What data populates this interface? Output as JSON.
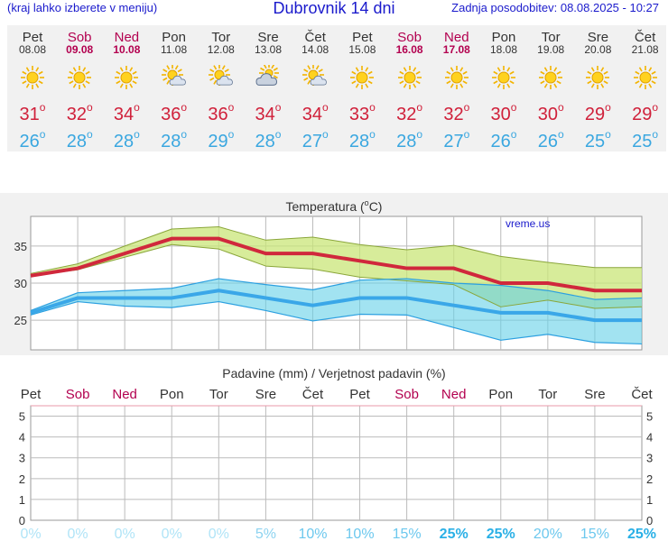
{
  "header": {
    "left_note": "(kraj lahko izberete v meniju)",
    "title": "Dubrovnik 14 dni",
    "updated": "Zadnja posodobitev: 08.08.2025 - 10:27"
  },
  "days": [
    {
      "name": "Pet",
      "date": "08.08",
      "weekend": false,
      "icon": "sun-icon",
      "max": "31",
      "min": "26",
      "precip_prob": "0%"
    },
    {
      "name": "Sob",
      "date": "09.08",
      "weekend": true,
      "icon": "sun-icon",
      "max": "32",
      "min": "28",
      "precip_prob": "0%"
    },
    {
      "name": "Ned",
      "date": "10.08",
      "weekend": true,
      "icon": "sun-icon",
      "max": "34",
      "min": "28",
      "precip_prob": "0%"
    },
    {
      "name": "Pon",
      "date": "11.08",
      "weekend": false,
      "icon": "partly-cloudy-icon",
      "max": "36",
      "min": "28",
      "precip_prob": "0%"
    },
    {
      "name": "Tor",
      "date": "12.08",
      "weekend": false,
      "icon": "partly-cloudy-icon",
      "max": "36",
      "min": "29",
      "precip_prob": "0%"
    },
    {
      "name": "Sre",
      "date": "13.08",
      "weekend": false,
      "icon": "cloudy-icon",
      "max": "34",
      "min": "28",
      "precip_prob": "5%"
    },
    {
      "name": "Čet",
      "date": "14.08",
      "weekend": false,
      "icon": "partly-cloudy-icon",
      "max": "34",
      "min": "27",
      "precip_prob": "10%"
    },
    {
      "name": "Pet",
      "date": "15.08",
      "weekend": false,
      "icon": "sun-icon",
      "max": "33",
      "min": "28",
      "precip_prob": "10%"
    },
    {
      "name": "Sob",
      "date": "16.08",
      "weekend": true,
      "icon": "sun-icon",
      "max": "32",
      "min": "28",
      "precip_prob": "15%"
    },
    {
      "name": "Ned",
      "date": "17.08",
      "weekend": true,
      "icon": "sun-icon",
      "max": "32",
      "min": "27",
      "precip_prob": "25%"
    },
    {
      "name": "Pon",
      "date": "18.08",
      "weekend": false,
      "icon": "sun-icon",
      "max": "30",
      "min": "26",
      "precip_prob": "25%"
    },
    {
      "name": "Tor",
      "date": "19.08",
      "weekend": false,
      "icon": "sun-icon",
      "max": "30",
      "min": "26",
      "precip_prob": "20%"
    },
    {
      "name": "Sre",
      "date": "20.08",
      "weekend": false,
      "icon": "sun-icon",
      "max": "29",
      "min": "25",
      "precip_prob": "15%"
    },
    {
      "name": "Čet",
      "date": "21.08",
      "weekend": false,
      "icon": "sun-icon",
      "max": "29",
      "min": "25",
      "precip_prob": "25%"
    }
  ],
  "degree_symbol": "o",
  "colors": {
    "max": "#d0203a",
    "min": "#3aa7e0",
    "weekend": "#b3004f",
    "link": "#1a1acc"
  },
  "chart_data": [
    {
      "type": "area",
      "title": "Temperatura (°C)",
      "title_prefix": "Temperatura (",
      "title_unit": "C",
      "title_suffix": ")",
      "watermark": "vreme.us",
      "ylim": [
        21,
        39
      ],
      "yticks": [
        "25",
        "30",
        "35"
      ],
      "x": [
        0,
        1,
        2,
        3,
        4,
        5,
        6,
        7,
        8,
        9,
        10,
        11,
        12,
        13
      ],
      "series": [
        {
          "name": "Max",
          "values": [
            31,
            32,
            34,
            36,
            36,
            34,
            34,
            33,
            32,
            32,
            30,
            30,
            29,
            29
          ]
        },
        {
          "name": "Max upper",
          "values": [
            31.3,
            32.6,
            35,
            37.3,
            37.6,
            35.8,
            36.2,
            35.2,
            34.5,
            35.1,
            33.6,
            32.8,
            32.1,
            32.1
          ]
        },
        {
          "name": "Max lower",
          "values": [
            31,
            31.8,
            33.5,
            35.2,
            34.6,
            32.3,
            31.9,
            30.8,
            30.3,
            29.8,
            26.8,
            27.7,
            26.6,
            26.8
          ]
        },
        {
          "name": "Min",
          "values": [
            26,
            28,
            28,
            28,
            29,
            28,
            27,
            28,
            28,
            27,
            26,
            26,
            25,
            25
          ]
        },
        {
          "name": "Min upper",
          "values": [
            26.3,
            28.7,
            29,
            29.3,
            30.6,
            29.8,
            29.1,
            30.4,
            30.6,
            30,
            29.7,
            29,
            27.8,
            28
          ]
        },
        {
          "name": "Min lower",
          "values": [
            25.7,
            27.5,
            26.9,
            26.7,
            27.5,
            26.3,
            24.9,
            25.8,
            25.7,
            24,
            22.3,
            23.1,
            22,
            21.8
          ]
        }
      ]
    },
    {
      "type": "bar",
      "title": "Padavine (mm) / Verjetnost padavin (%)",
      "ylim": [
        0,
        5.5
      ],
      "yticks": [
        "0",
        "1",
        "2",
        "3",
        "4",
        "5"
      ],
      "categories": [
        "Pet",
        "Sob",
        "Ned",
        "Pon",
        "Tor",
        "Sre",
        "Čet",
        "Pet",
        "Sob",
        "Ned",
        "Pon",
        "Tor",
        "Sre",
        "Čet"
      ],
      "series": [
        {
          "name": "Padavine (mm)",
          "values": [
            0,
            0,
            0,
            0,
            0,
            0,
            0,
            0,
            0,
            0,
            0,
            0,
            0,
            0
          ]
        }
      ],
      "probabilities": [
        "0%",
        "0%",
        "0%",
        "0%",
        "0%",
        "5%",
        "10%",
        "10%",
        "15%",
        "25%",
        "25%",
        "20%",
        "15%",
        "25%"
      ]
    }
  ]
}
